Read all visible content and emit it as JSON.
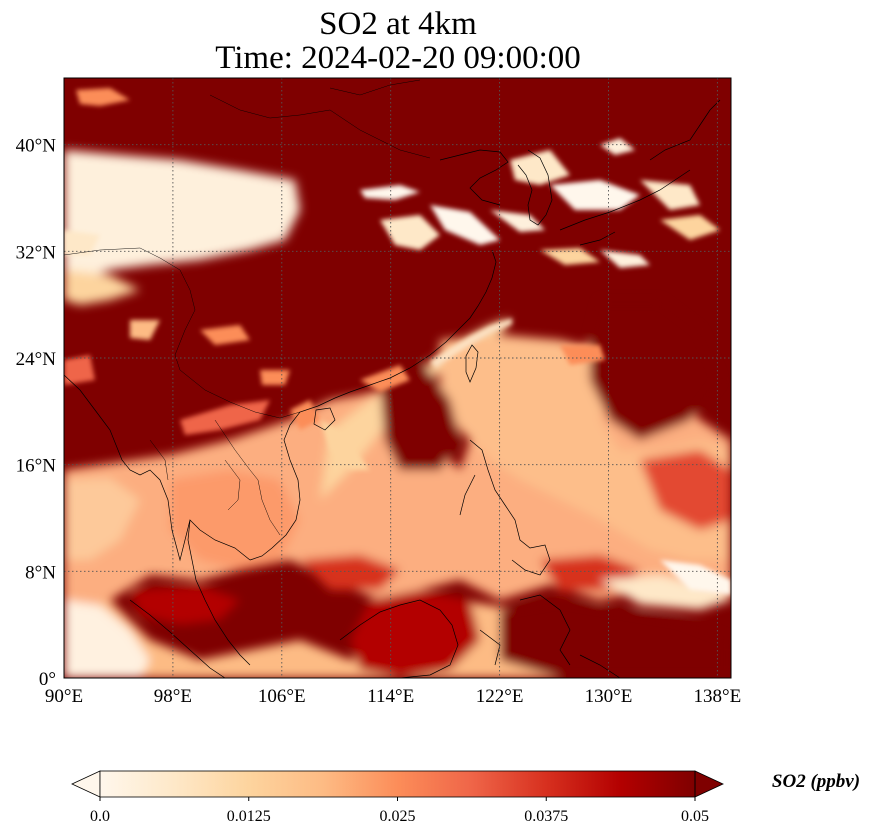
{
  "title": {
    "line1": "SO2 at 4km",
    "line2": "Time: 2024-02-20 09:00:00"
  },
  "map": {
    "lon_range": [
      90,
      139
    ],
    "lat_range": [
      0,
      45
    ],
    "grid": true,
    "lon_ticks": [
      {
        "value": 90,
        "label": "90°E"
      },
      {
        "value": 98,
        "label": "98°E"
      },
      {
        "value": 106,
        "label": "106°E"
      },
      {
        "value": 114,
        "label": "114°E"
      },
      {
        "value": 122,
        "label": "122°E"
      },
      {
        "value": 130,
        "label": "130°E"
      },
      {
        "value": 138,
        "label": "138°E"
      }
    ],
    "lat_ticks": [
      {
        "value": 0,
        "label": "0°"
      },
      {
        "value": 8,
        "label": "8°N"
      },
      {
        "value": 16,
        "label": "16°N"
      },
      {
        "value": 24,
        "label": "24°N"
      },
      {
        "value": 32,
        "label": "32°N"
      },
      {
        "value": 40,
        "label": "40°N"
      }
    ]
  },
  "colorbar": {
    "label": "SO2 (ppbv)",
    "min": 0.0,
    "max": 0.05,
    "extend": "both",
    "colormap": "OrRd",
    "colors": [
      "#fff7ec",
      "#fee8c8",
      "#fdd49e",
      "#fdbb84",
      "#fc8d59",
      "#ef6548",
      "#d7301f",
      "#b30000",
      "#7f0000"
    ],
    "ticks": [
      {
        "value": 0.0,
        "label": "0.0"
      },
      {
        "value": 0.0125,
        "label": "0.0125"
      },
      {
        "value": 0.025,
        "label": "0.025"
      },
      {
        "value": 0.0375,
        "label": "0.0375"
      },
      {
        "value": 0.05,
        "label": "0.05"
      }
    ]
  }
}
